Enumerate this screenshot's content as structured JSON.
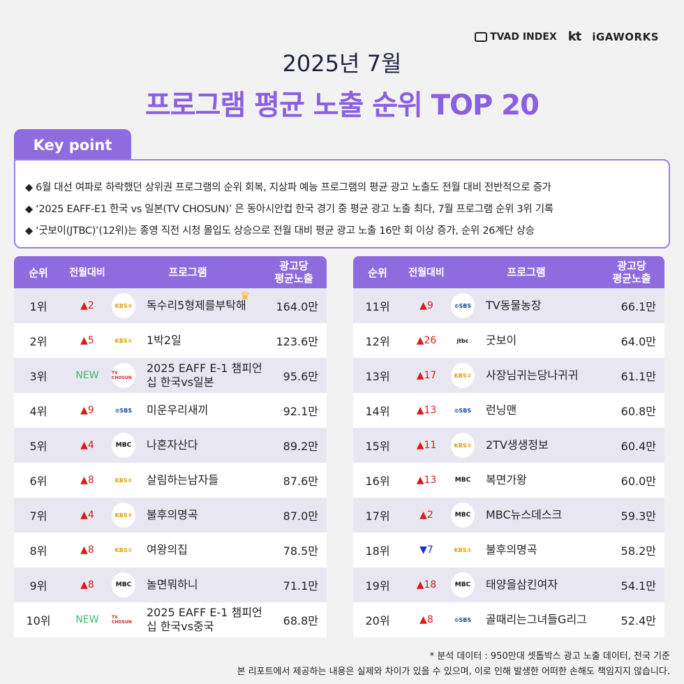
{
  "brand": {
    "tvad": "TVAD INDEX",
    "kt": "kt",
    "igaworks": "iGAWORKS"
  },
  "title": "2025년 7월",
  "subtitle": "프로그램 평균 노출 순위 TOP 20",
  "keypoint": {
    "label": "Key point",
    "items": [
      "◆ 6월 대선 여파로 하락했던 상위권 프로그램의 순위 회복, 지상파 예능 프로그램의 평균 광고 노출도 전월 대비 전반적으로 증가",
      "◆ ‘2025 EAFF-E1 한국 vs 일본(TV CHOSUN)’ 은 동아시안컵 한국 경기 중 평균 광고 노출 최다, 7월 프로그램 순위 3위 기록",
      "◆ ‘굿보이(JTBC)’(12위)는 종영 직전 시청 몰입도 상승으로 전월 대비 평균 광고 노출 16만 회 이상 증가, 순위 26계단 상승"
    ]
  },
  "headers": {
    "rank": "순위",
    "change": "전월대비",
    "program": "프로그램",
    "value1": "광고당",
    "value2": "평균노출"
  },
  "left": [
    {
      "rank": "1위",
      "change": "▲2",
      "dir": "up",
      "channel": "KBS2",
      "program": "독수리5형제를부탁해",
      "value": "164.0만",
      "crown": true
    },
    {
      "rank": "2위",
      "change": "▲5",
      "dir": "up",
      "channel": "KBS2",
      "program": "1박2일",
      "value": "123.6만"
    },
    {
      "rank": "3위",
      "change": "NEW",
      "dir": "new",
      "channel": "TV CHOSUN",
      "program": "2025 EAFF E-1 챔피언십 한국vs일본",
      "value": "95.6만"
    },
    {
      "rank": "4위",
      "change": "▲9",
      "dir": "up",
      "channel": "SBS",
      "program": "미운우리새끼",
      "value": "92.1만"
    },
    {
      "rank": "5위",
      "change": "▲4",
      "dir": "up",
      "channel": "MBC",
      "program": "나혼자산다",
      "value": "89.2만"
    },
    {
      "rank": "6위",
      "change": "▲8",
      "dir": "up",
      "channel": "KBS2",
      "program": "살림하는남자들",
      "value": "87.6만"
    },
    {
      "rank": "7위",
      "change": "▲4",
      "dir": "up",
      "channel": "KBS2",
      "program": "불후의명곡",
      "value": "87.0만"
    },
    {
      "rank": "8위",
      "change": "▲8",
      "dir": "up",
      "channel": "KBS2",
      "program": "여왕의집",
      "value": "78.5만"
    },
    {
      "rank": "9위",
      "change": "▲8",
      "dir": "up",
      "channel": "MBC",
      "program": "놀면뭐하니",
      "value": "71.1만"
    },
    {
      "rank": "10위",
      "change": "NEW",
      "dir": "new",
      "channel": "TV CHOSUN",
      "program": "2025 EAFF E-1 챔피언십 한국vs중국",
      "value": "68.8만"
    }
  ],
  "right": [
    {
      "rank": "11위",
      "change": "▲9",
      "dir": "up",
      "channel": "SBS",
      "program": "TV동물농장",
      "value": "66.1만"
    },
    {
      "rank": "12위",
      "change": "▲26",
      "dir": "up",
      "channel": "JTBC",
      "program": "굿보이",
      "value": "64.0만"
    },
    {
      "rank": "13위",
      "change": "▲17",
      "dir": "up",
      "channel": "KBS2",
      "program": "사장님귀는당나귀귀",
      "value": "61.1만"
    },
    {
      "rank": "14위",
      "change": "▲13",
      "dir": "up",
      "channel": "SBS",
      "program": "런닝맨",
      "value": "60.8만"
    },
    {
      "rank": "15위",
      "change": "▲11",
      "dir": "up",
      "channel": "KBS2",
      "program": "2TV생생정보",
      "value": "60.4만"
    },
    {
      "rank": "16위",
      "change": "▲13",
      "dir": "up",
      "channel": "MBC",
      "program": "복면가왕",
      "value": "60.0만"
    },
    {
      "rank": "17위",
      "change": "▲2",
      "dir": "up",
      "channel": "MBC",
      "program": "MBC뉴스데스크",
      "value": "59.3만"
    },
    {
      "rank": "18위",
      "change": "▼7",
      "dir": "down",
      "channel": "KBS2",
      "program": "불후의명곡",
      "value": "58.2만"
    },
    {
      "rank": "19위",
      "change": "▲18",
      "dir": "up",
      "channel": "MBC",
      "program": "태양을삼킨여자",
      "value": "54.1만"
    },
    {
      "rank": "20위",
      "change": "▲8",
      "dir": "up",
      "channel": "SBS",
      "program": "골때리는그녀들G리그",
      "value": "52.4만"
    }
  ],
  "footer": {
    "line1": "* 분석 데이터 : 950만대 셋톱박스 광고 노출 데이터, 전국 기준",
    "line2": "본 리포트에서 제공하는 내용은 실제와 차이가 있을 수 있으며, 이로 인해 발생한 어떠한 손해도 책임지지 않습니다."
  },
  "colors": {
    "accent": "#8e6ce0",
    "up": "#d81b1b",
    "down": "#1a2fd0",
    "new": "#3dbb6b"
  }
}
